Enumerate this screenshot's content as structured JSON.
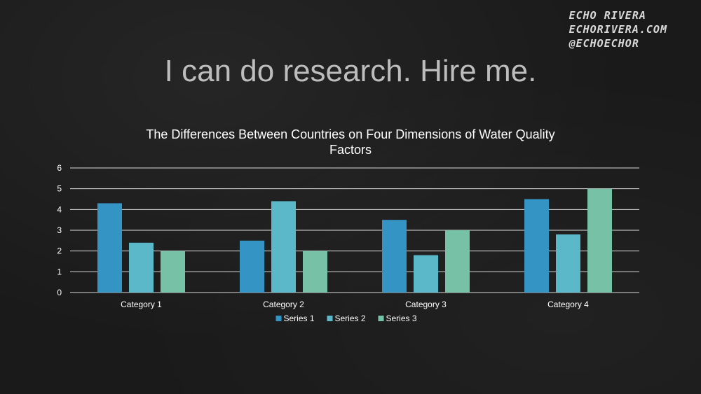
{
  "watermark": {
    "line1": "Echo Rivera",
    "line2": "echorivera.com",
    "line3": "@echoechor"
  },
  "slide": {
    "title": "I can do research. Hire me."
  },
  "chart_data": {
    "type": "bar",
    "title": "The Differences Between Countries on Four Dimensions of Water Quality Factors",
    "title_lines": [
      "The Differences Between Countries on Four Dimensions of Water Quality",
      "Factors"
    ],
    "categories": [
      "Category 1",
      "Category 2",
      "Category 3",
      "Category 4"
    ],
    "series": [
      {
        "name": "Series 1",
        "values": [
          4.3,
          2.5,
          3.5,
          4.5
        ],
        "color": "#3494c4"
      },
      {
        "name": "Series 2",
        "values": [
          2.4,
          4.4,
          1.8,
          2.8
        ],
        "color": "#5ab8c8"
      },
      {
        "name": "Series 3",
        "values": [
          2.0,
          2.0,
          3.0,
          5.0
        ],
        "color": "#77c2a6"
      }
    ],
    "ylim": [
      0,
      6
    ],
    "yticks": [
      0,
      1,
      2,
      3,
      4,
      5,
      6
    ],
    "grid": true,
    "legend_position": "bottom",
    "xlabel": "",
    "ylabel": ""
  }
}
